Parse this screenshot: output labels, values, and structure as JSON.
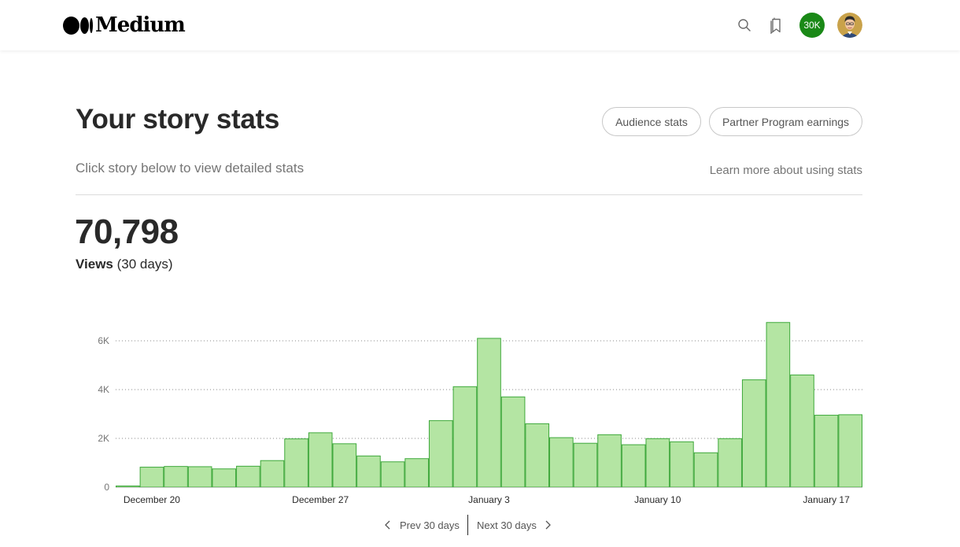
{
  "header": {
    "logo_text": "Medium",
    "count_badge": "30K",
    "icons": [
      "search-icon",
      "bookmark-icon"
    ],
    "accent_color": "#1a8917"
  },
  "page": {
    "title": "Your story stats",
    "subtitle": "Click story below to view detailed stats",
    "learn_link": "Learn more about using stats",
    "buttons": {
      "audience": "Audience stats",
      "partner": "Partner Program earnings"
    }
  },
  "summary": {
    "total_views": "70,798",
    "views_label": "Views",
    "period_label": "(30 days)"
  },
  "chart_data": {
    "type": "bar",
    "title": "",
    "xlabel": "",
    "ylabel": "",
    "ylim": [
      0,
      7000
    ],
    "yticks": [
      0,
      2000,
      4000,
      6000
    ],
    "ytick_labels": [
      "0",
      "2K",
      "4K",
      "6K"
    ],
    "grid": true,
    "bar_color": "#b4e5a3",
    "bar_edge_color": "#3ea83b",
    "categories": [
      "Dec 19",
      "Dec 20",
      "Dec 21",
      "Dec 22",
      "Dec 23",
      "Dec 24",
      "Dec 25",
      "Dec 26",
      "Dec 27",
      "Dec 28",
      "Dec 29",
      "Dec 30",
      "Dec 31",
      "Jan 1",
      "Jan 2",
      "Jan 3",
      "Jan 4",
      "Jan 5",
      "Jan 6",
      "Jan 7",
      "Jan 8",
      "Jan 9",
      "Jan 10",
      "Jan 11",
      "Jan 12",
      "Jan 13",
      "Jan 14",
      "Jan 15",
      "Jan 16",
      "Jan 17",
      "Jan 18"
    ],
    "values": [
      50,
      820,
      850,
      840,
      750,
      860,
      1090,
      1980,
      2230,
      1780,
      1280,
      1040,
      1170,
      2730,
      4120,
      6100,
      3700,
      2600,
      2030,
      1800,
      2150,
      1740,
      1990,
      1860,
      1410,
      1990,
      4400,
      6750,
      4600,
      2950,
      2970
    ],
    "x_tick_labels": [
      {
        "index": 1,
        "label": "December 20"
      },
      {
        "index": 8,
        "label": "December 27"
      },
      {
        "index": 15,
        "label": "January 3"
      },
      {
        "index": 22,
        "label": "January 10"
      },
      {
        "index": 29,
        "label": "January 17"
      }
    ]
  },
  "pagination": {
    "prev": "Prev 30 days",
    "next": "Next 30 days"
  }
}
